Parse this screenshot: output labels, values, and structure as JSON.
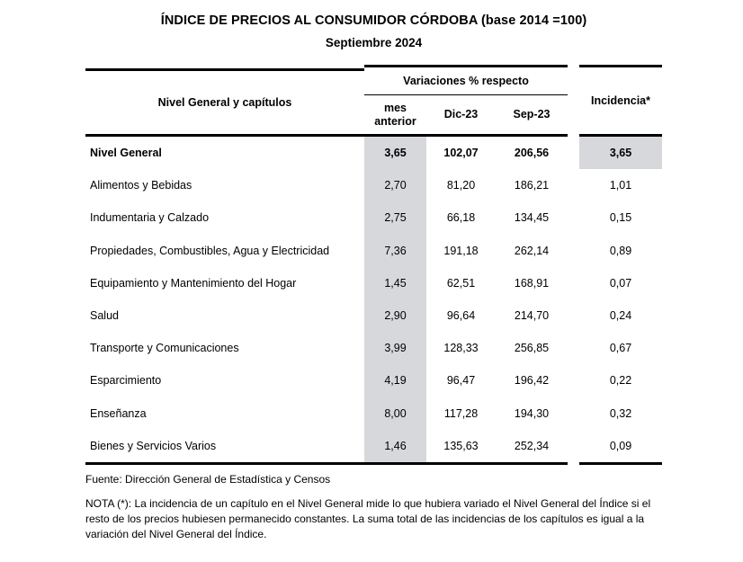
{
  "title": "ÍNDICE DE PRECIOS AL CONSUMIDOR CÓRDOBA (base 2014 =100)",
  "subtitle": "Septiembre 2024",
  "colors": {
    "shaded_cell": "#d6d8db",
    "rule": "#000000"
  },
  "table": {
    "row_header": "Nivel General y capítulos",
    "col_group_header": "Variaciones % respecto",
    "columns": [
      "mes anterior",
      "Dic-23",
      "Sep-23"
    ],
    "incidencia_header": "Incidencia*",
    "rows": [
      {
        "label": "Nivel General",
        "mes_anterior": "3,65",
        "dic23": "102,07",
        "sep23": "206,56",
        "incidencia": "3,65",
        "emphasis": true
      },
      {
        "label": "Alimentos y Bebidas",
        "mes_anterior": "2,70",
        "dic23": "81,20",
        "sep23": "186,21",
        "incidencia": "1,01",
        "emphasis": false
      },
      {
        "label": "Indumentaria y Calzado",
        "mes_anterior": "2,75",
        "dic23": "66,18",
        "sep23": "134,45",
        "incidencia": "0,15",
        "emphasis": false
      },
      {
        "label": "Propiedades, Combustibles, Agua y Electricidad",
        "mes_anterior": "7,36",
        "dic23": "191,18",
        "sep23": "262,14",
        "incidencia": "0,89",
        "emphasis": false
      },
      {
        "label": "Equipamiento y Mantenimiento del Hogar",
        "mes_anterior": "1,45",
        "dic23": "62,51",
        "sep23": "168,91",
        "incidencia": "0,07",
        "emphasis": false
      },
      {
        "label": "Salud",
        "mes_anterior": "2,90",
        "dic23": "96,64",
        "sep23": "214,70",
        "incidencia": "0,24",
        "emphasis": false
      },
      {
        "label": "Transporte y Comunicaciones",
        "mes_anterior": "3,99",
        "dic23": "128,33",
        "sep23": "256,85",
        "incidencia": "0,67",
        "emphasis": false
      },
      {
        "label": "Esparcimiento",
        "mes_anterior": "4,19",
        "dic23": "96,47",
        "sep23": "196,42",
        "incidencia": "0,22",
        "emphasis": false
      },
      {
        "label": "Enseñanza",
        "mes_anterior": "8,00",
        "dic23": "117,28",
        "sep23": "194,30",
        "incidencia": "0,32",
        "emphasis": false
      },
      {
        "label": "Bienes y Servicios Varios",
        "mes_anterior": "1,46",
        "dic23": "135,63",
        "sep23": "252,34",
        "incidencia": "0,09",
        "emphasis": false
      }
    ]
  },
  "footer": {
    "fuente": "Fuente: Dirección General de Estadística y Censos",
    "nota": "NOTA (*): La incidencia de un capítulo en el Nivel General mide lo que hubiera variado el Nivel General del Índice si el resto de los precios hubiesen permanecido constantes. La suma total de las incidencias de los capítulos es igual a la variación del Nivel General del Índice."
  }
}
